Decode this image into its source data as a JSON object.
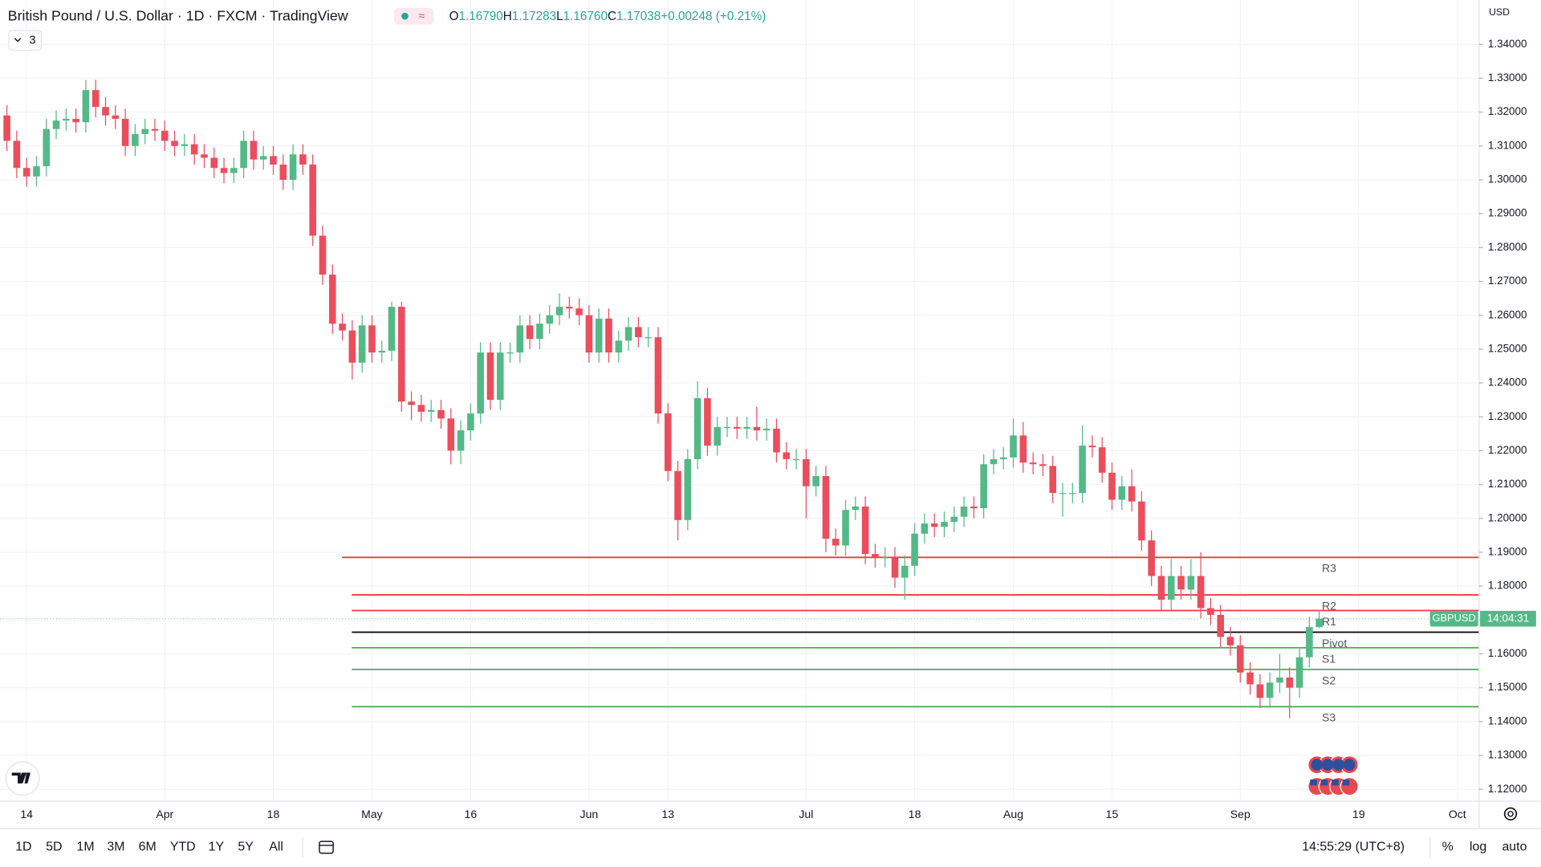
{
  "header": {
    "title": "British Pound / U.S. Dollar · 1D · FXCM · TradingView",
    "ohlc": [
      {
        "key": "O",
        "value": "1.16790"
      },
      {
        "key": "H",
        "value": "1.17283"
      },
      {
        "key": "L",
        "value": "1.16760"
      },
      {
        "key": "C",
        "value": "1.17038"
      }
    ],
    "change": "+0.00248 (+0.21%)",
    "indicator_count": "3"
  },
  "chart_data": {
    "type": "candlestick",
    "currency": "USD",
    "symbol": "GBPUSD",
    "countdown": "14:04:31",
    "up_color": "#53b987",
    "down_color": "#eb4d5c",
    "grid": true,
    "categories": [
      null,
      null,
      "14",
      null,
      null,
      null,
      null,
      null,
      null,
      null,
      null,
      null,
      null,
      null,
      null,
      null,
      "Apr",
      null,
      null,
      null,
      null,
      null,
      null,
      null,
      null,
      null,
      null,
      "18",
      null,
      null,
      null,
      null,
      null,
      null,
      null,
      null,
      null,
      "May",
      null,
      null,
      null,
      null,
      null,
      null,
      null,
      null,
      null,
      "16",
      null,
      null,
      null,
      null,
      null,
      null,
      null,
      null,
      null,
      null,
      null,
      "Jun",
      null,
      null,
      null,
      null,
      null,
      null,
      null,
      "13",
      null,
      null,
      null,
      null,
      null,
      null,
      null,
      null,
      null,
      null,
      null,
      null,
      null,
      "Jul",
      null,
      null,
      null,
      null,
      null,
      null,
      null,
      null,
      null,
      null,
      "18",
      null,
      null,
      null,
      null,
      null,
      null,
      null,
      null,
      null,
      "Aug",
      null,
      null,
      null,
      null,
      null,
      null,
      null,
      null,
      null,
      "15",
      null,
      null,
      null,
      null,
      null,
      null,
      null,
      null,
      null,
      null,
      null,
      null,
      "Sep",
      null,
      null,
      null,
      null,
      null,
      null,
      null,
      null,
      null,
      null,
      null,
      "19",
      null,
      null,
      null,
      null,
      null,
      null,
      null,
      null,
      null,
      "Oct",
      null,
      null
    ],
    "open": [
      1.319,
      1.3115,
      1.3035,
      1.301,
      1.304,
      1.315,
      1.3175,
      1.318,
      1.317,
      1.3265,
      1.3215,
      1.319,
      1.318,
      1.31,
      1.3135,
      1.315,
      1.3145,
      1.3115,
      1.31,
      1.3105,
      1.3075,
      1.3065,
      1.3035,
      1.302,
      1.3035,
      1.3115,
      1.306,
      1.307,
      1.3045,
      1.3,
      1.3075,
      1.3045,
      1.2835,
      1.272,
      1.2575,
      1.2555,
      1.246,
      1.257,
      1.249,
      1.2495,
      1.2625,
      1.2345,
      1.2335,
      1.2315,
      1.232,
      1.2295,
      1.22,
      1.226,
      1.231,
      1.249,
      1.235,
      1.249,
      1.249,
      1.257,
      1.253,
      1.2575,
      1.26,
      1.2625,
      1.262,
      1.26,
      1.249,
      1.259,
      1.249,
      1.2525,
      1.2565,
      1.2535,
      1.2535,
      1.231,
      1.214,
      1.1995,
      1.2175,
      1.2355,
      1.2215,
      1.227,
      1.227,
      1.2265,
      1.227,
      1.226,
      1.2265,
      1.2195,
      1.2175,
      1.2175,
      1.2095,
      1.2125,
      1.194,
      1.192,
      1.2025,
      1.2035,
      1.1895,
      1.1885,
      1.1885,
      1.1825,
      1.186,
      1.1955,
      1.1985,
      1.1975,
      1.199,
      1.2005,
      1.2035,
      1.203,
      1.216,
      1.2175,
      1.218,
      1.2245,
      1.2165,
      1.216,
      1.2155,
      1.2075,
      1.2075,
      1.2075,
      1.2215,
      1.221,
      1.2135,
      1.2055,
      1.2095,
      1.205,
      1.1935,
      1.183,
      1.176,
      1.183,
      1.179,
      1.183,
      1.1735,
      1.1715,
      1.165,
      1.1625,
      1.1545,
      1.151,
      1.147,
      1.1515,
      1.153,
      1.15,
      1.159,
      1.1679,
      null,
      null,
      null,
      null,
      null,
      null,
      null,
      null,
      null,
      null,
      null,
      null,
      null,
      null,
      null,
      null
    ],
    "high": [
      1.322,
      1.3145,
      1.3065,
      1.307,
      1.318,
      1.3205,
      1.321,
      1.321,
      1.3295,
      1.3295,
      1.3245,
      1.322,
      1.321,
      1.3165,
      1.318,
      1.318,
      1.3175,
      1.3145,
      1.3135,
      1.3135,
      1.3105,
      1.3095,
      1.3065,
      1.3065,
      1.3145,
      1.3145,
      1.31,
      1.31,
      1.3075,
      1.3105,
      1.3105,
      1.3075,
      1.2865,
      1.275,
      1.2605,
      1.2585,
      1.26,
      1.26,
      1.2525,
      1.264,
      1.264,
      1.2375,
      1.2365,
      1.235,
      1.235,
      1.2325,
      1.229,
      1.234,
      1.252,
      1.252,
      1.252,
      1.252,
      1.26,
      1.26,
      1.2605,
      1.263,
      1.2665,
      1.2655,
      1.265,
      1.263,
      1.262,
      1.262,
      1.2555,
      1.2595,
      1.2595,
      1.2565,
      1.2565,
      1.234,
      1.217,
      1.2205,
      1.2405,
      1.2385,
      1.23,
      1.23,
      1.23,
      1.23,
      1.233,
      1.2295,
      1.2295,
      1.2225,
      1.2205,
      1.2205,
      1.2155,
      1.2155,
      1.197,
      1.2055,
      1.2065,
      1.2065,
      1.1925,
      1.1915,
      1.1915,
      1.189,
      1.1985,
      1.2015,
      1.2015,
      1.202,
      1.2035,
      1.2065,
      1.2065,
      1.219,
      1.2205,
      1.221,
      1.2295,
      1.2285,
      1.2195,
      1.219,
      1.2185,
      1.2105,
      1.2105,
      1.2275,
      1.2245,
      1.224,
      1.2165,
      1.2125,
      1.2145,
      1.208,
      1.1965,
      1.186,
      1.188,
      1.186,
      1.188,
      1.19,
      1.1765,
      1.1745,
      1.168,
      1.1655,
      1.1575,
      1.154,
      1.1545,
      1.16,
      1.156,
      1.162,
      1.171,
      1.17283,
      null,
      null,
      null,
      null,
      null,
      null,
      null,
      null,
      null,
      null,
      null,
      null,
      null,
      null,
      null,
      null
    ],
    "low": [
      1.3085,
      1.3005,
      1.298,
      1.298,
      1.301,
      1.312,
      1.3145,
      1.314,
      1.314,
      1.3185,
      1.316,
      1.315,
      1.307,
      1.307,
      1.3105,
      1.3115,
      1.3085,
      1.307,
      1.307,
      1.3045,
      1.3035,
      1.3005,
      1.299,
      1.299,
      1.3005,
      1.303,
      1.303,
      1.3015,
      1.297,
      1.297,
      1.3015,
      1.2805,
      1.269,
      1.2545,
      1.2525,
      1.241,
      1.243,
      1.246,
      1.246,
      1.2465,
      1.2315,
      1.229,
      1.2285,
      1.2285,
      1.2265,
      1.216,
      1.216,
      1.223,
      1.228,
      1.232,
      1.232,
      1.246,
      1.246,
      1.25,
      1.25,
      1.2545,
      1.257,
      1.259,
      1.257,
      1.246,
      1.246,
      1.246,
      1.246,
      1.2495,
      1.2505,
      1.2505,
      1.228,
      1.211,
      1.1935,
      1.1965,
      1.2145,
      1.2185,
      1.2185,
      1.224,
      1.2235,
      1.2235,
      1.223,
      1.223,
      1.2165,
      1.2145,
      1.2145,
      1.2,
      1.2065,
      1.19,
      1.189,
      1.189,
      1.1995,
      1.1865,
      1.1855,
      1.1855,
      1.1795,
      1.176,
      1.183,
      1.1925,
      1.1945,
      1.1945,
      1.196,
      1.1975,
      1.2,
      1.2,
      1.213,
      1.2145,
      1.215,
      1.2135,
      1.213,
      1.2125,
      1.2045,
      1.2005,
      1.2045,
      1.2045,
      1.218,
      1.2105,
      1.2025,
      1.2025,
      1.202,
      1.1905,
      1.18,
      1.173,
      1.173,
      1.176,
      1.176,
      1.1705,
      1.1685,
      1.162,
      1.1595,
      1.1515,
      1.148,
      1.144,
      1.144,
      1.1485,
      1.141,
      1.147,
      1.156,
      1.1676,
      null,
      null,
      null,
      null,
      null,
      null,
      null,
      null,
      null,
      null,
      null,
      null,
      null,
      null,
      null,
      null
    ],
    "close": [
      1.3115,
      1.3035,
      1.301,
      1.304,
      1.315,
      1.3175,
      1.318,
      1.317,
      1.3265,
      1.3215,
      1.319,
      1.318,
      1.31,
      1.3135,
      1.315,
      1.3145,
      1.3115,
      1.31,
      1.3105,
      1.3075,
      1.3065,
      1.3035,
      1.302,
      1.3035,
      1.3115,
      1.306,
      1.307,
      1.3045,
      1.3,
      1.3075,
      1.3045,
      1.2835,
      1.272,
      1.2575,
      1.2555,
      1.246,
      1.257,
      1.249,
      1.2495,
      1.2625,
      1.2345,
      1.2335,
      1.2315,
      1.232,
      1.2295,
      1.22,
      1.226,
      1.231,
      1.249,
      1.235,
      1.249,
      1.249,
      1.257,
      1.253,
      1.2575,
      1.26,
      1.2625,
      1.262,
      1.26,
      1.249,
      1.259,
      1.249,
      1.2525,
      1.2565,
      1.2535,
      1.2535,
      1.231,
      1.214,
      1.1995,
      1.2175,
      1.2355,
      1.2215,
      1.227,
      1.227,
      1.2265,
      1.227,
      1.226,
      1.2265,
      1.2195,
      1.2175,
      1.2175,
      1.2095,
      1.2125,
      1.194,
      1.192,
      1.2025,
      1.2035,
      1.1895,
      1.1885,
      1.1885,
      1.1825,
      1.186,
      1.1955,
      1.1985,
      1.1975,
      1.199,
      1.2005,
      1.2035,
      1.203,
      1.216,
      1.2175,
      1.218,
      1.2245,
      1.2165,
      1.216,
      1.2155,
      1.2075,
      1.2075,
      1.2075,
      1.2215,
      1.221,
      1.2135,
      1.2055,
      1.2095,
      1.205,
      1.1935,
      1.183,
      1.176,
      1.183,
      1.179,
      1.183,
      1.1735,
      1.1715,
      1.165,
      1.1625,
      1.1545,
      1.151,
      1.147,
      1.1515,
      1.153,
      1.15,
      1.159,
      1.1679,
      1.17038,
      null,
      null,
      null,
      null,
      null,
      null,
      null,
      null,
      null,
      null,
      null,
      null,
      null,
      null,
      null,
      null
    ],
    "ylim": [
      1.1165,
      1.3531
    ],
    "yticks": [
      {
        "value": 1.12,
        "label": "1.12000"
      },
      {
        "value": 1.13,
        "label": "1.13000"
      },
      {
        "value": 1.14,
        "label": "1.14000"
      },
      {
        "value": 1.15,
        "label": "1.15000"
      },
      {
        "value": 1.16,
        "label": "1.16000"
      },
      {
        "value": 1.17,
        "label": "1.17000"
      },
      {
        "value": 1.18,
        "label": "1.18000"
      },
      {
        "value": 1.19,
        "label": "1.19000"
      },
      {
        "value": 1.2,
        "label": "1.20000"
      },
      {
        "value": 1.21,
        "label": "1.21000"
      },
      {
        "value": 1.22,
        "label": "1.22000"
      },
      {
        "value": 1.23,
        "label": "1.23000"
      },
      {
        "value": 1.24,
        "label": "1.24000"
      },
      {
        "value": 1.25,
        "label": "1.25000"
      },
      {
        "value": 1.26,
        "label": "1.26000"
      },
      {
        "value": 1.27,
        "label": "1.27000"
      },
      {
        "value": 1.28,
        "label": "1.28000"
      },
      {
        "value": 1.29,
        "label": "1.29000"
      },
      {
        "value": 1.3,
        "label": "1.30000"
      },
      {
        "value": 1.31,
        "label": "1.31000"
      },
      {
        "value": 1.32,
        "label": "1.32000"
      },
      {
        "value": 1.33,
        "label": "1.33000"
      },
      {
        "value": 1.34,
        "label": "1.34000"
      }
    ],
    "levels": [
      {
        "name": "R3",
        "value": 1.1885,
        "color": "#f23645"
      },
      {
        "name": "R2",
        "value": 1.1774,
        "color": "#f23645"
      },
      {
        "name": "R1",
        "value": 1.1728,
        "color": "#f23645"
      },
      {
        "name": "Pivot",
        "value": 1.1664,
        "color": "#000000"
      },
      {
        "name": "S1",
        "value": 1.1618,
        "color": "#4caf50"
      },
      {
        "name": "S2",
        "value": 1.1554,
        "color": "#4caf50"
      },
      {
        "name": "S3",
        "value": 1.1444,
        "color": "#4caf50"
      }
    ]
  },
  "toolbar": {
    "ranges": [
      "1D",
      "5D",
      "1M",
      "3M",
      "6M",
      "YTD",
      "1Y",
      "5Y",
      "All"
    ],
    "time": "14:55:29 (UTC+8)",
    "options": [
      "%",
      "log",
      "auto"
    ]
  }
}
